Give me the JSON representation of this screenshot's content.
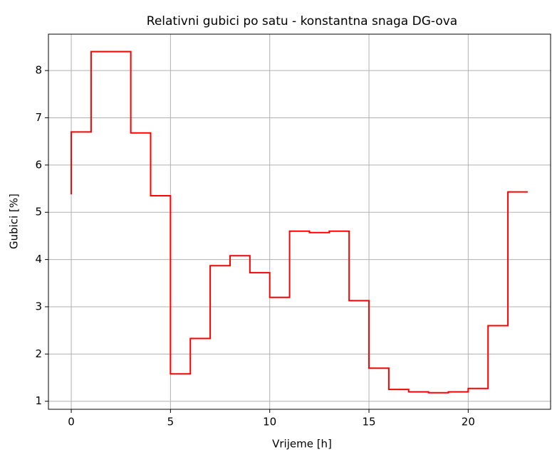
{
  "chart_data": {
    "type": "step",
    "title": "Relativni gubici po satu - konstantna snaga DG-ova",
    "xlabel": "Vrijeme [h]",
    "ylabel": "Gubici [%]",
    "x": [
      0,
      1,
      2,
      3,
      4,
      5,
      6,
      7,
      8,
      9,
      10,
      11,
      12,
      13,
      14,
      15,
      16,
      17,
      18,
      19,
      20,
      21,
      22,
      23
    ],
    "values": [
      5.38,
      6.7,
      8.4,
      8.4,
      6.68,
      5.35,
      1.58,
      2.33,
      3.87,
      4.08,
      3.72,
      3.2,
      4.6,
      4.57,
      4.6,
      3.13,
      1.7,
      1.25,
      1.2,
      1.18,
      1.2,
      1.27,
      2.6,
      5.43
    ],
    "color": "#ff0000",
    "drawstyle": "steps-pre",
    "xlim": [
      -1.15,
      24.15
    ],
    "xticks": [
      0,
      5,
      10,
      15,
      20
    ],
    "ylim": [
      0.83,
      8.77
    ],
    "yticks": [
      1,
      2,
      3,
      4,
      5,
      6,
      7,
      8
    ],
    "grid": true
  }
}
